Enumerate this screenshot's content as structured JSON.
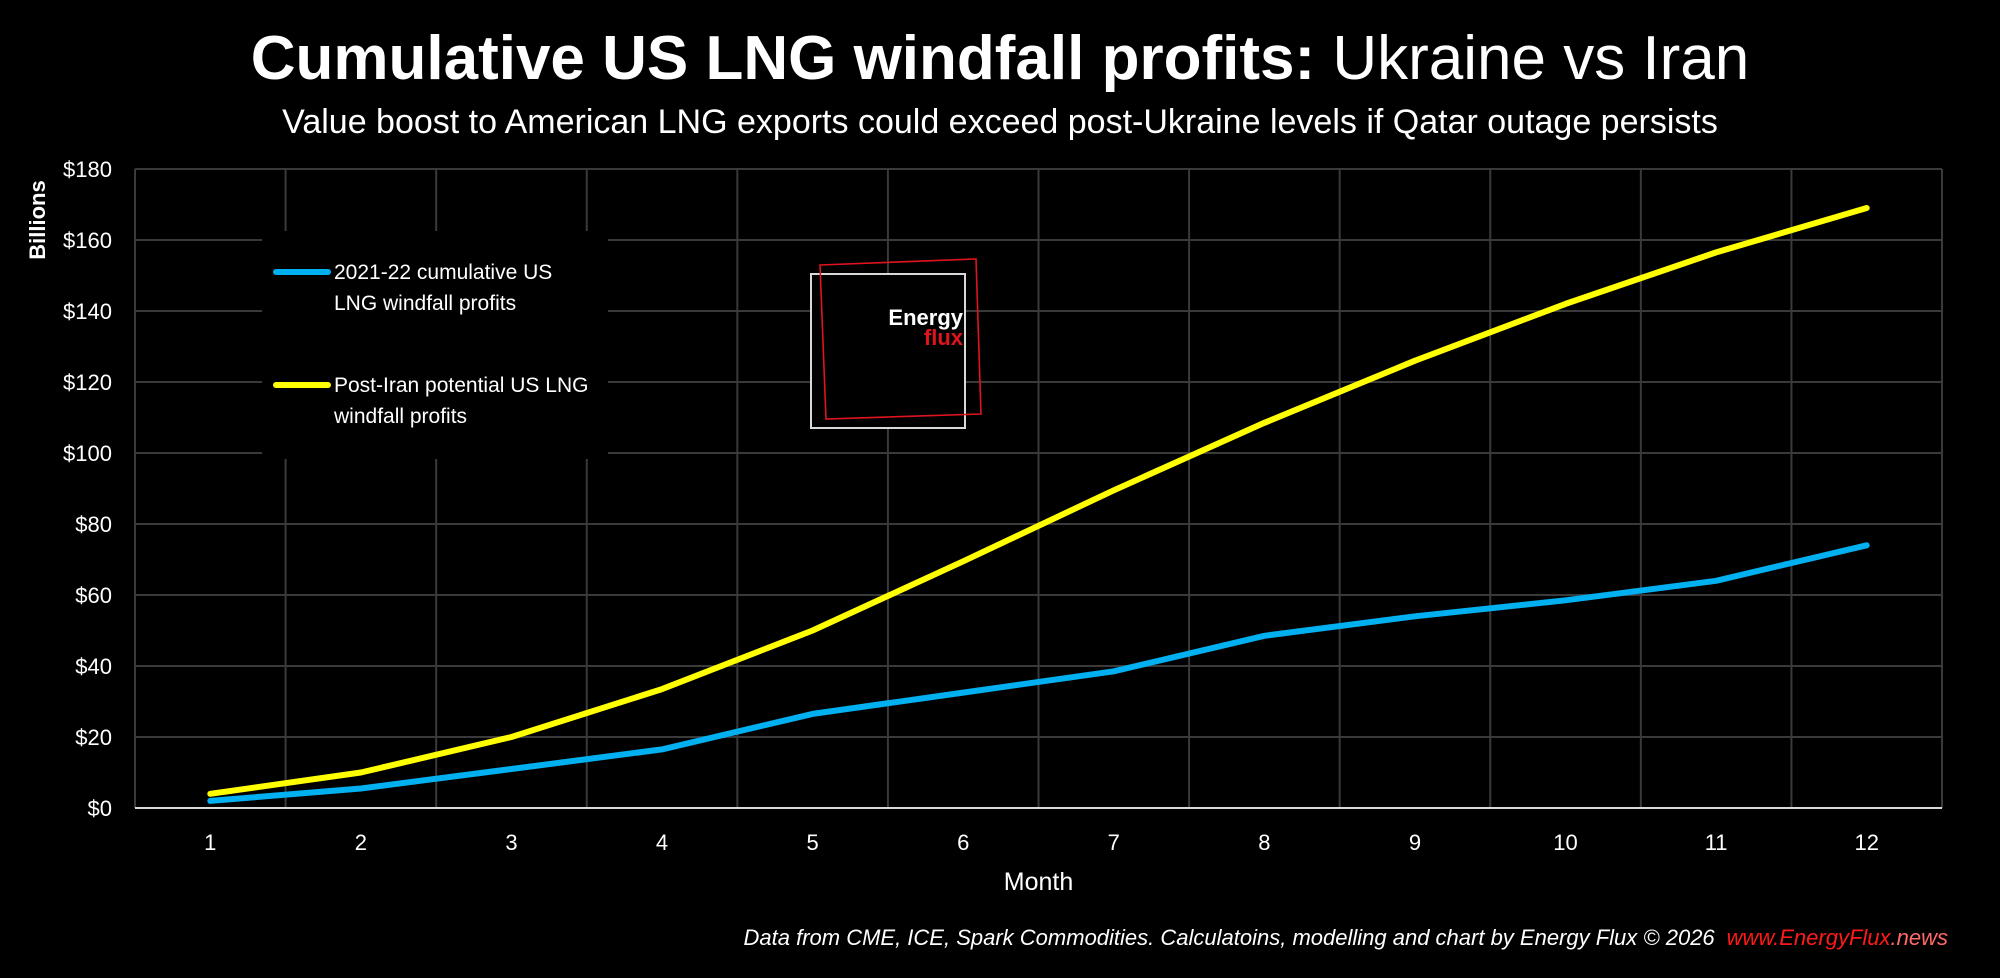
{
  "header": {
    "title_bold": "Cumulative US LNG windfall profits:",
    "title_light": "Ukraine vs Iran",
    "subtitle": "Value boost to American LNG exports could exceed post-Ukraine levels if Qatar outage persists"
  },
  "footer": {
    "source": "Data from CME, ICE, Spark Commodities. Calculatoins, modelling and chart by Energy Flux © 2026",
    "site_main": "www.EnergyFlux",
    "site_tld": ".news"
  },
  "logo": {
    "line1": "Energy",
    "line2": "flux"
  },
  "colors": {
    "background": "#000000",
    "grid": "#3a3a3a",
    "axis": "#d9d9d9",
    "series_ukraine": "#00b0f0",
    "series_iran": "#ffff00",
    "brand_red": "#e0141e",
    "site_red": "#ff1a1a",
    "site_tld": "#ff6a6a"
  },
  "chart_data": {
    "type": "line",
    "title": "Cumulative US LNG windfall profits: Ukraine vs Iran",
    "xlabel": "Month",
    "ylabel": "Billions",
    "categories": [
      "1",
      "2",
      "3",
      "4",
      "5",
      "6",
      "7",
      "8",
      "9",
      "10",
      "11",
      "12"
    ],
    "ylim": [
      0,
      180
    ],
    "yticks": [
      0,
      20,
      40,
      60,
      80,
      100,
      120,
      140,
      160,
      180
    ],
    "ytick_labels": [
      "$0",
      "$20",
      "$40",
      "$60",
      "$80",
      "$100",
      "$120",
      "$140",
      "$160",
      "$180"
    ],
    "grid": true,
    "legend_position": "top-left",
    "series": [
      {
        "name": "2021-22 cumulative US LNG windfall profits",
        "legend_lines": [
          "2021-22 cumulative US",
          "LNG windfall profits"
        ],
        "color": "#00b0f0",
        "values": [
          2,
          5.5,
          11,
          16.5,
          26.5,
          32.5,
          38.5,
          48.5,
          54,
          58.5,
          64,
          74
        ]
      },
      {
        "name": "Post-Iran potential US LNG windfall profits",
        "legend_lines": [
          "Post-Iran potential US LNG",
          "windfall profits"
        ],
        "color": "#ffff00",
        "values": [
          4,
          10,
          20,
          33.5,
          50,
          69.5,
          89.5,
          108.5,
          126,
          142,
          156.5,
          169
        ]
      }
    ]
  }
}
